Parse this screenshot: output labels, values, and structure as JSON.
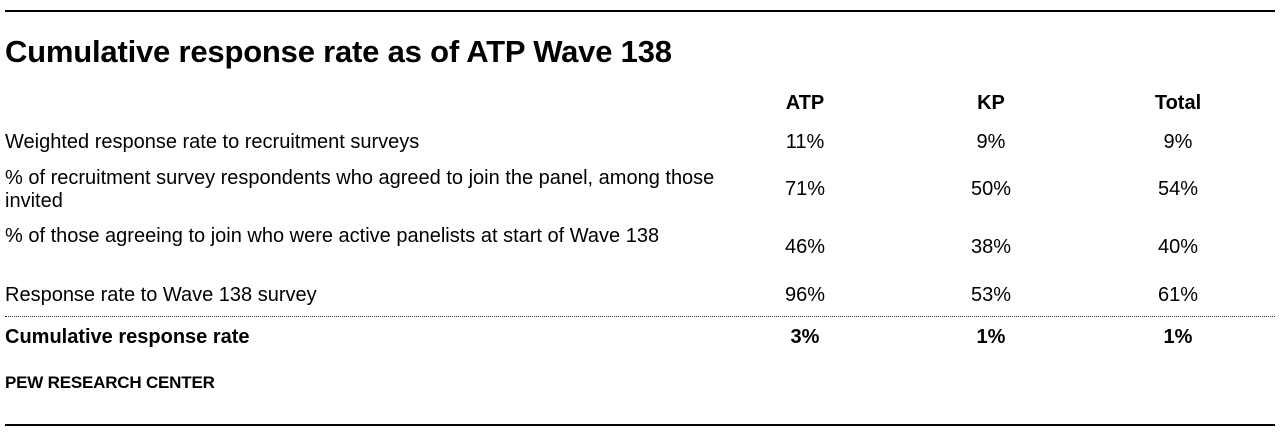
{
  "title": "Cumulative response rate as of ATP Wave 138",
  "columns": [
    "ATP",
    "KP",
    "Total"
  ],
  "rows": [
    {
      "label": "Weighted response rate to recruitment surveys",
      "values": [
        "11%",
        "9%",
        "9%"
      ]
    },
    {
      "label": "% of recruitment survey respondents who agreed to join the panel, among those invited",
      "values": [
        "71%",
        "50%",
        "54%"
      ]
    },
    {
      "label": "% of those agreeing to join who were active panelists at start of Wave 138",
      "values": [
        "46%",
        "38%",
        "40%"
      ]
    },
    {
      "label": "Response rate to Wave 138 survey",
      "values": [
        "96%",
        "53%",
        "61%"
      ]
    }
  ],
  "total_row": {
    "label": "Cumulative response rate",
    "values": [
      "3%",
      "1%",
      "1%"
    ]
  },
  "source": "PEW RESEARCH CENTER"
}
